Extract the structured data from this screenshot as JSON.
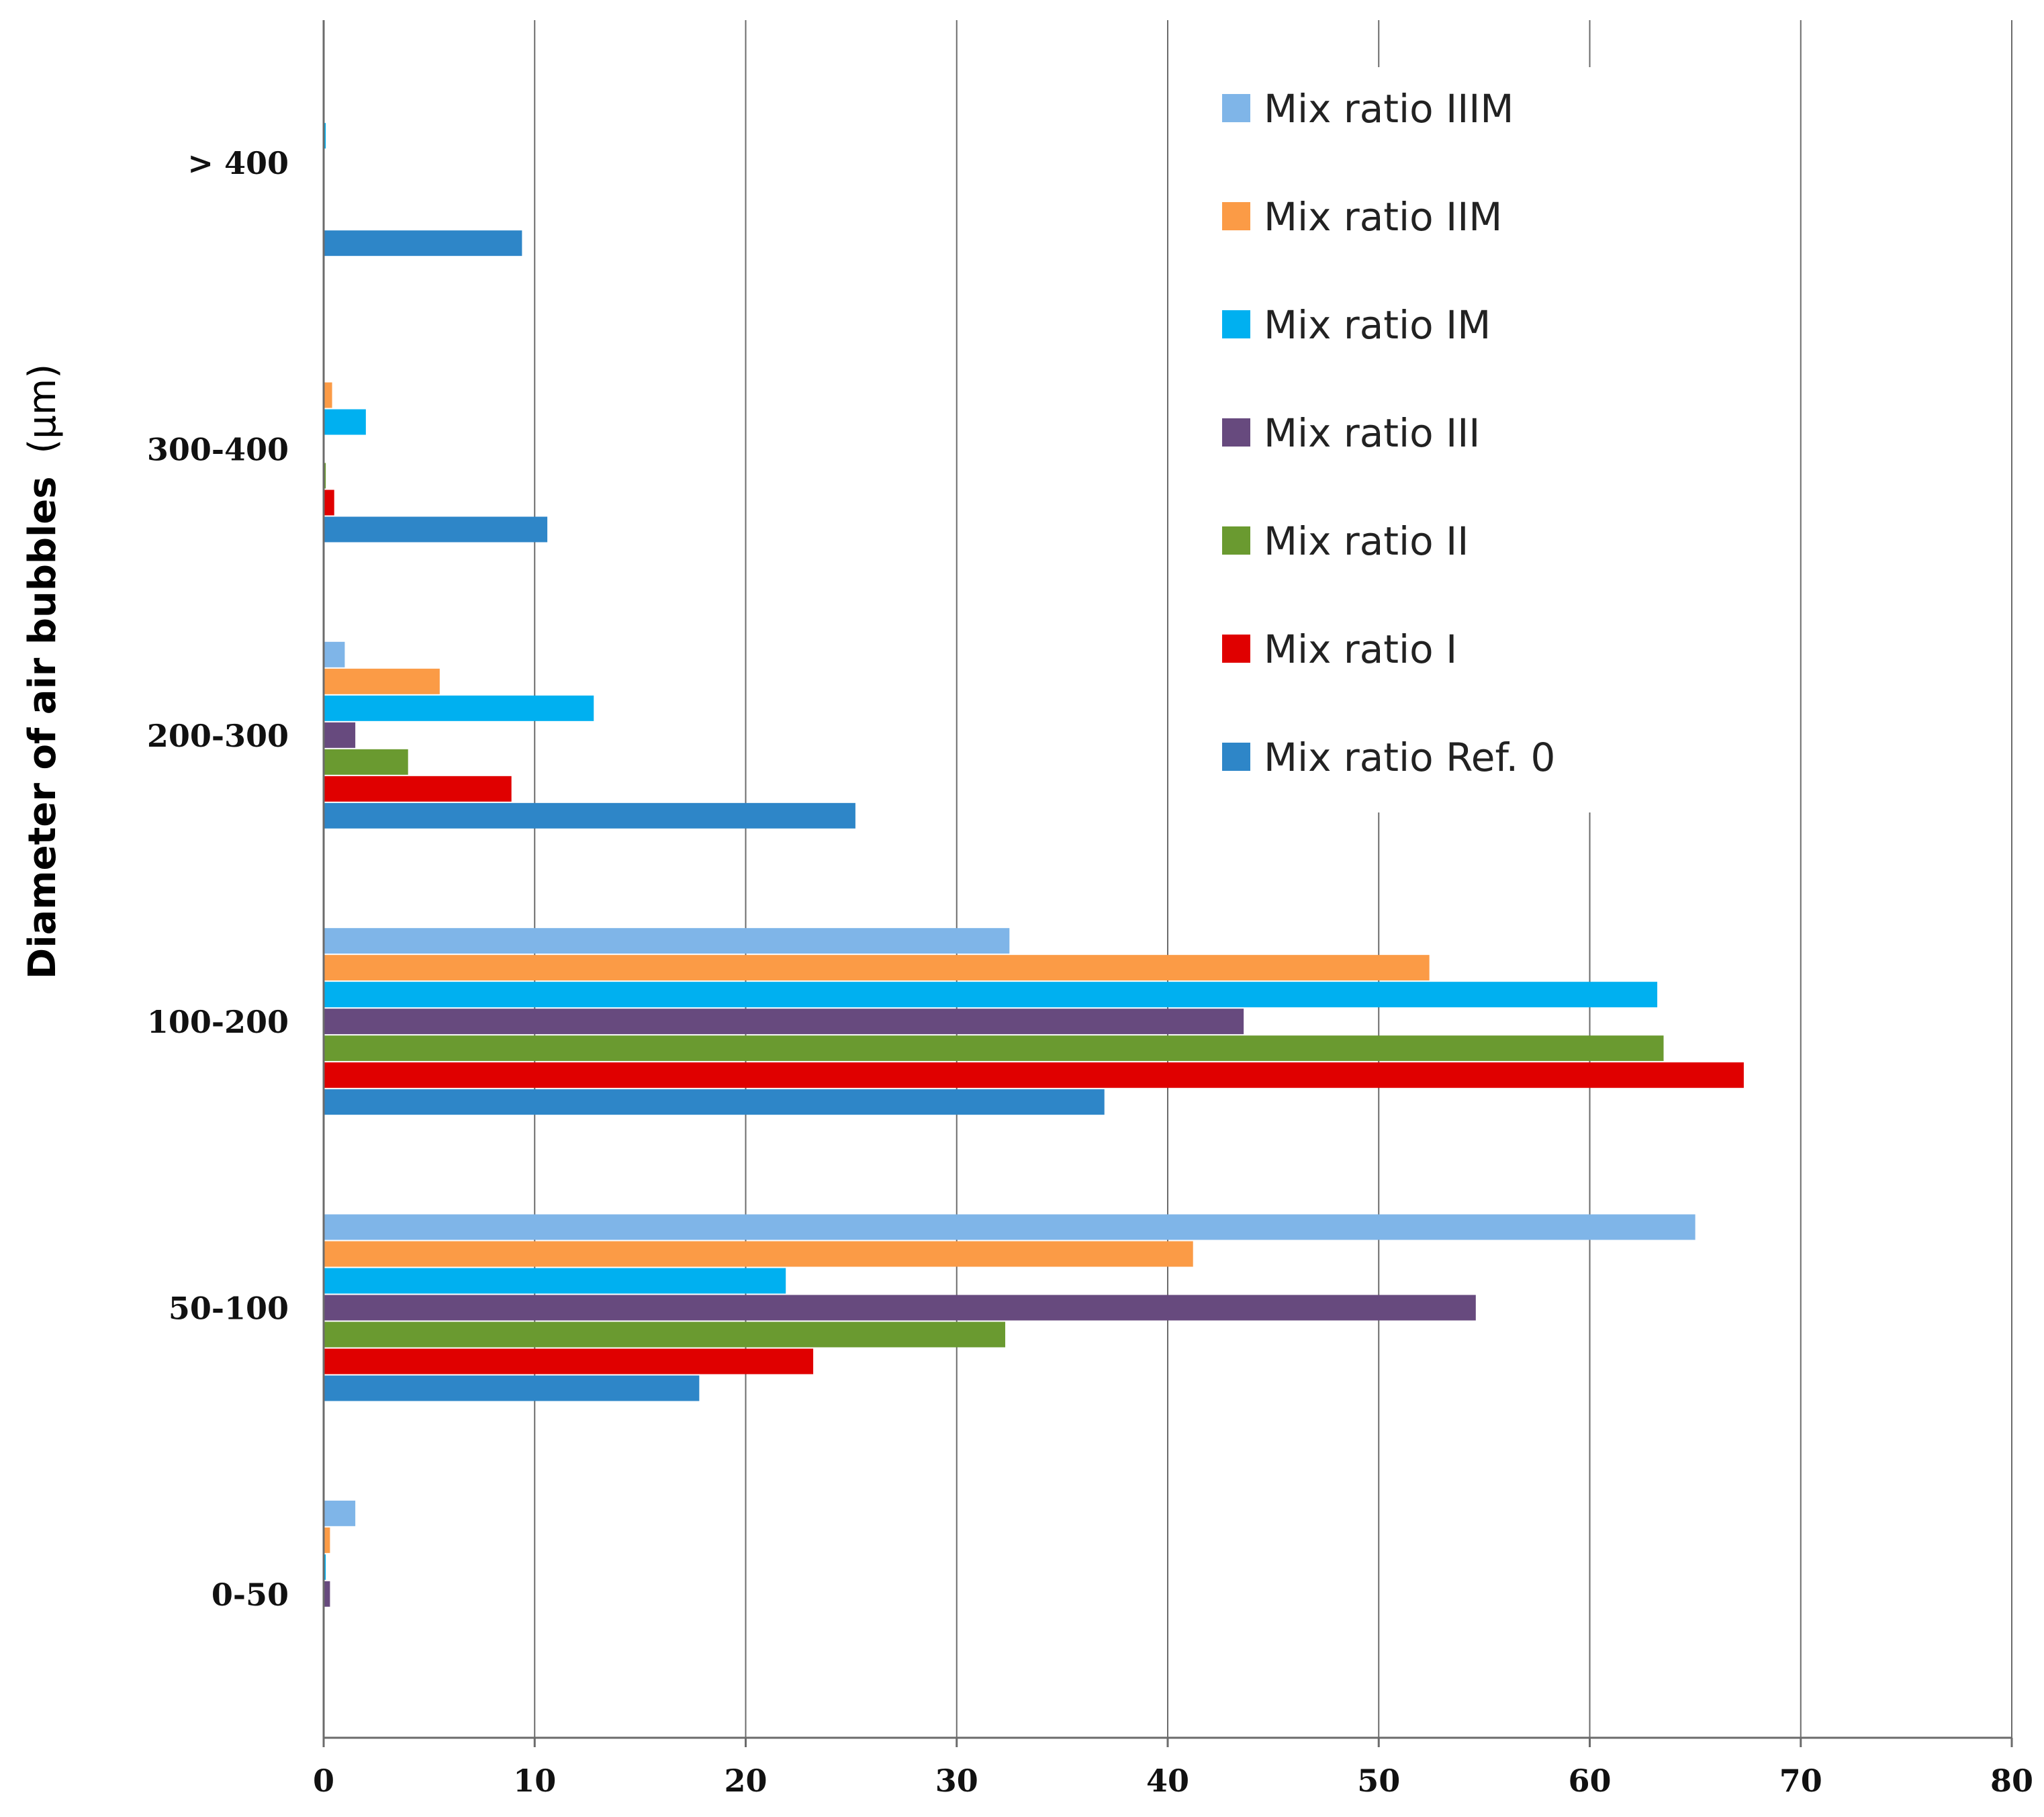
{
  "chart_data": {
    "type": "bar",
    "orientation": "horizontal",
    "title": "",
    "xlabel": "",
    "ylabel_main": "Diameter of air bubbles",
    "ylabel_unit": "(μm)",
    "xlim": [
      0,
      80
    ],
    "x_ticks": [
      "0",
      "10",
      "20",
      "30",
      "40",
      "50",
      "60",
      "70",
      "80"
    ],
    "categories": [
      "0-50",
      "50-100",
      "100-200",
      "200-300",
      "300-400",
      "> 400"
    ],
    "grid": "vertical",
    "legend_position": "top-right",
    "series": [
      {
        "name": "Mix ratio Ref. 0",
        "color": "#2e86c8",
        "values": [
          0,
          17.8,
          37,
          25.2,
          10.6,
          9.4
        ]
      },
      {
        "name": "Mix ratio I",
        "color": "#e00000",
        "values": [
          0,
          23.2,
          67.3,
          8.9,
          0.5,
          0
        ]
      },
      {
        "name": "Mix ratio II",
        "color": "#6a9a30",
        "values": [
          0,
          32.3,
          63.5,
          4,
          0.1,
          0
        ]
      },
      {
        "name": "Mix ratio III",
        "color": "#674a7e",
        "values": [
          0.3,
          54.6,
          43.6,
          1.5,
          0,
          0
        ]
      },
      {
        "name": "Mix ratio IM",
        "color": "#00b0f0",
        "values": [
          0.1,
          21.9,
          63.2,
          12.8,
          2,
          0.1
        ]
      },
      {
        "name": "Mix ratio IIM",
        "color": "#fb9b46",
        "values": [
          0.3,
          41.2,
          52.4,
          5.5,
          0.4,
          0
        ]
      },
      {
        "name": "Mix ratio IIIM",
        "color": "#7fb5e8",
        "values": [
          1.5,
          65,
          32.5,
          1,
          0,
          0
        ]
      }
    ]
  }
}
